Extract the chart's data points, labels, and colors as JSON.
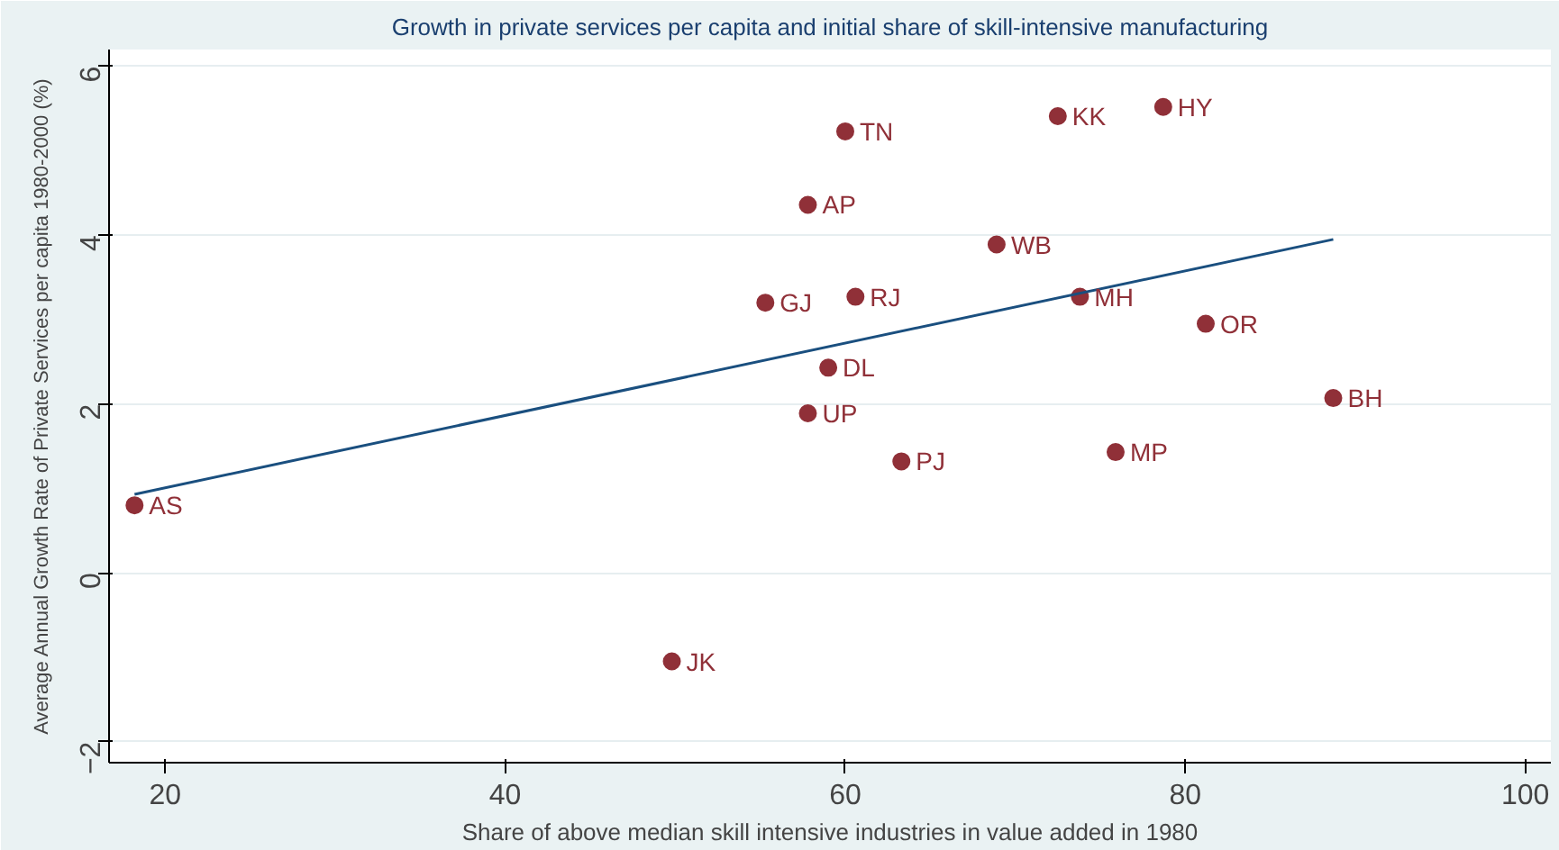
{
  "chart_data": {
    "type": "scatter",
    "title": "Growth in private services per capita and initial share of skill-intensive manufacturing",
    "xlabel": "Share of above median skill intensive industries in value added in 1980",
    "ylabel": "Average Annual Growth Rate of Private Services per capita 1980-2000 (%)",
    "xlim": [
      16.7,
      101.5
    ],
    "ylim": [
      -2.25,
      6.2
    ],
    "xticks": [
      20,
      40,
      60,
      80,
      100
    ],
    "yticks": [
      -2,
      0,
      2,
      4,
      6
    ],
    "grid": "y",
    "series": [
      {
        "color": "#903038",
        "marker": "circle",
        "x": [
          18.2,
          49.8,
          60.0,
          57.8,
          55.3,
          60.6,
          59.0,
          57.8,
          63.3,
          68.9,
          72.5,
          78.7,
          73.8,
          75.9,
          81.2,
          88.7
        ],
        "values": [
          0.8,
          -1.05,
          5.23,
          4.36,
          3.2,
          3.27,
          2.43,
          1.89,
          1.32,
          3.89,
          5.41,
          5.52,
          3.27,
          1.43,
          2.95,
          2.07
        ],
        "value_labels": [
          "AS",
          "JK",
          "TN",
          "AP",
          "GJ",
          "RJ",
          "DL",
          "UP",
          "PJ",
          "WB",
          "KK",
          "HY",
          "MH",
          "MP",
          "OR",
          "BH"
        ]
      },
      {
        "type": "line",
        "marker": "none",
        "color": "#1a4f7f",
        "x": [
          18.2,
          88.7
        ],
        "values": [
          0.93,
          3.95
        ]
      }
    ]
  }
}
